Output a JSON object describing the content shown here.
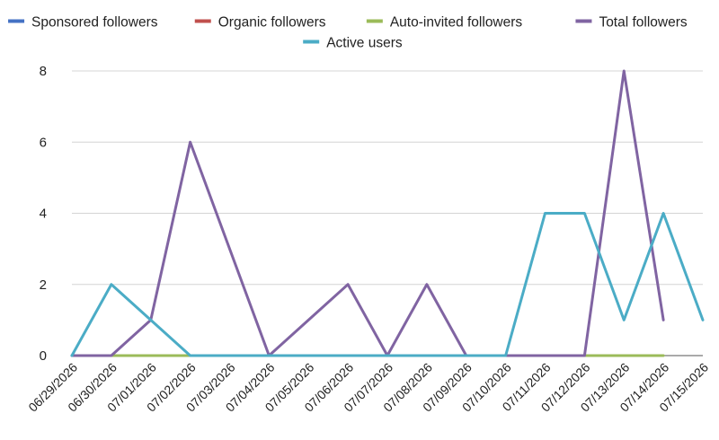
{
  "chart_data": {
    "type": "line",
    "categories": [
      "06/29/2026",
      "06/30/2026",
      "07/01/2026",
      "07/02/2026",
      "07/03/2026",
      "07/04/2026",
      "07/05/2026",
      "07/06/2026",
      "07/07/2026",
      "07/08/2026",
      "07/09/2026",
      "07/10/2026",
      "07/11/2026",
      "07/12/2026",
      "07/13/2026",
      "07/14/2026",
      "07/15/2026"
    ],
    "ylim": [
      0,
      8
    ],
    "yticks": [
      0,
      2,
      4,
      6,
      8
    ],
    "grid": true,
    "legend_position": "top",
    "series": [
      {
        "name": "Sponsored followers",
        "color": "#4472c4",
        "values": [
          null,
          null,
          null,
          null,
          null,
          null,
          null,
          null,
          null,
          null,
          null,
          null,
          null,
          null,
          null,
          null,
          null
        ]
      },
      {
        "name": "Organic followers",
        "color": "#c0504d",
        "values": [
          null,
          null,
          null,
          null,
          null,
          null,
          null,
          null,
          null,
          null,
          null,
          null,
          null,
          null,
          null,
          null,
          null
        ]
      },
      {
        "name": "Auto-invited followers",
        "color": "#9bbb59",
        "values": [
          0,
          0,
          0,
          0,
          0,
          0,
          0,
          0,
          0,
          0,
          0,
          0,
          0,
          0,
          0,
          0,
          null
        ]
      },
      {
        "name": "Total followers",
        "color": "#8064a2",
        "values": [
          0,
          0,
          1,
          6,
          3,
          0,
          1,
          2,
          0,
          2,
          0,
          0,
          0,
          0,
          8,
          1,
          null
        ]
      },
      {
        "name": "Active users",
        "color": "#4bacc6",
        "values": [
          0,
          2,
          1,
          0,
          0,
          0,
          0,
          0,
          0,
          0,
          0,
          0,
          4,
          4,
          1,
          4,
          1
        ]
      }
    ]
  }
}
